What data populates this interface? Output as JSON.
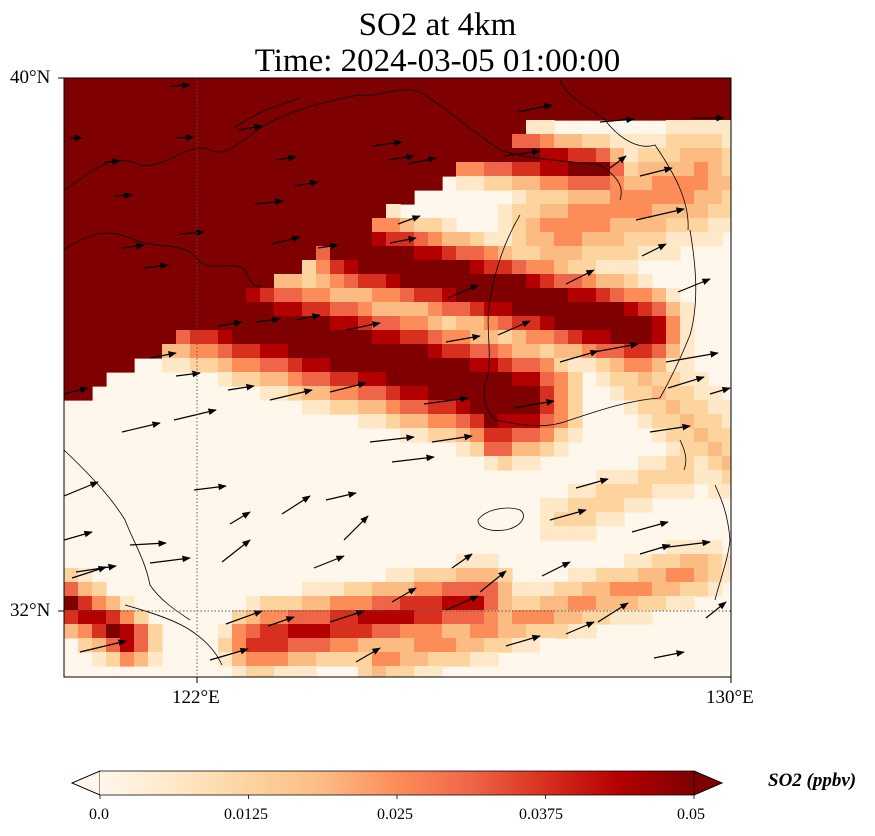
{
  "figure": {
    "title_line1": "SO2 at 4km",
    "title_line2": "Time: 2024-03-05 01:00:00",
    "variable": "SO2",
    "level": "4km",
    "time": "2024-03-05 01:00:00"
  },
  "map": {
    "lon_range": [
      120,
      130
    ],
    "lat_range": [
      31,
      40
    ],
    "projection": "PlateCarree",
    "gridlines": "dotted",
    "features": [
      "coastline",
      "land-outline",
      "wind-vectors",
      "so2-field"
    ],
    "lat_ticks": [
      "40°N",
      "32°N"
    ],
    "lon_ticks": [
      "122°E",
      "130°E"
    ],
    "so2_plumes": [
      {
        "name": "north-bohai-plume",
        "value_ppbv": 0.05
      },
      {
        "name": "yellow-sea-diagonal-band",
        "value_ppbv": 0.05
      },
      {
        "name": "southern-band",
        "value_ppbv": 0.04
      }
    ],
    "wind_direction": "westerly / west-southwesterly"
  },
  "colorbar": {
    "label": "SO2 (ppbv)",
    "colormap": "OrRd",
    "min": 0.0,
    "max": 0.05,
    "extend": "both",
    "tick_labels": [
      "0.0",
      "0.0125",
      "0.025",
      "0.0375",
      "0.05"
    ],
    "colors": [
      "#fff7ec",
      "#fee8c8",
      "#fdd49e",
      "#fdbb84",
      "#fc8d59",
      "#ef6548",
      "#d7301f",
      "#b30000",
      "#7f0000"
    ]
  }
}
